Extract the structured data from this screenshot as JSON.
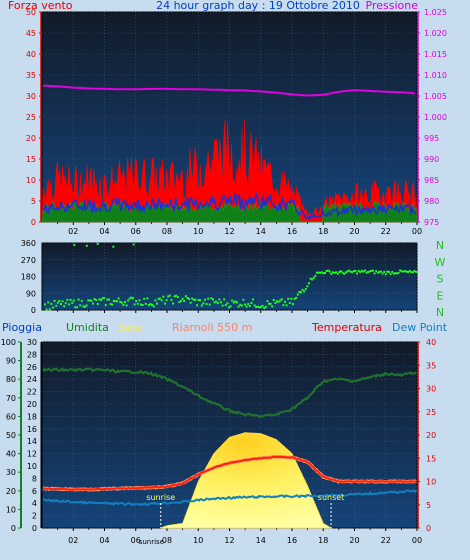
{
  "header": {
    "left": "Forza vento",
    "center": "24 hour graph day : 19 Ottobre 2010",
    "right": "Pressione"
  },
  "bottom_header": {
    "pioggia": "Pioggia",
    "umidita": "Umidita",
    "sole": "Sole",
    "station": "Riarnoli 550 m",
    "temperatura": "Temperatura",
    "dewpoint": "Dew Point"
  },
  "colors": {
    "plot_bg_top": "#101828",
    "plot_bg_bottom": "#14406e",
    "wind_gust": "#ff0000",
    "wind_avg": "#2030d0",
    "wind_green": "#108018",
    "pressure": "#e000e0",
    "direction": "#20ff20",
    "humidity": "#207030",
    "sun": "#ffee40",
    "temperature": "#ff2010",
    "dewpoint": "#1080c0",
    "label_red": "#e00000",
    "label_blue": "#0040c0",
    "label_green": "#108020"
  },
  "chart_data": [
    {
      "type": "line",
      "title": "24 hour graph day : 19 Ottobre 2010",
      "x_ticks": [
        "02",
        "04",
        "06",
        "08",
        "10",
        "12",
        "14",
        "16",
        "18",
        "20",
        "22",
        "00"
      ],
      "xlim": [
        0,
        24
      ],
      "left_axis": {
        "label": "Forza vento",
        "ylim": [
          0,
          50
        ],
        "ticks": [
          "0",
          "5",
          "10",
          "15",
          "20",
          "25",
          "30",
          "35",
          "40",
          "45",
          "50"
        ]
      },
      "right_axis": {
        "label": "Pressione",
        "ylim": [
          975,
          1025
        ],
        "ticks": [
          "975",
          "980",
          "985",
          "990",
          "995",
          "1.000",
          "1.005",
          "1.010",
          "1.015",
          "1.020",
          "1.025"
        ]
      },
      "series": [
        {
          "name": "Pressione",
          "axis": "right",
          "x": [
            0,
            1,
            2,
            3,
            4,
            5,
            6,
            7,
            8,
            9,
            10,
            11,
            12,
            13,
            14,
            15,
            16,
            17,
            18,
            19,
            20,
            21,
            22,
            23,
            24
          ],
          "values": [
            1007.5,
            1007.3,
            1007,
            1006.8,
            1006.7,
            1006.6,
            1006.6,
            1006.7,
            1006.7,
            1006.6,
            1006.6,
            1006.5,
            1006.4,
            1006.3,
            1006.1,
            1005.8,
            1005.4,
            1005.1,
            1005.3,
            1006,
            1006.4,
            1006.2,
            1006,
            1005.9,
            1005.6
          ]
        },
        {
          "name": "Forza vento",
          "axis": "left",
          "x": [
            0,
            1,
            2,
            3,
            4,
            5,
            6,
            7,
            8,
            9,
            10,
            11,
            12,
            13,
            14,
            15,
            16,
            17,
            18,
            19,
            20,
            21,
            22,
            23,
            24
          ],
          "values": [
            9,
            11,
            10,
            11,
            10,
            11,
            12,
            12,
            11,
            12,
            14,
            17,
            19,
            18,
            14,
            11,
            8,
            2,
            4,
            6,
            7,
            7,
            8,
            8,
            7
          ]
        },
        {
          "name": "wind-average",
          "axis": "left",
          "x": [
            0,
            2,
            4,
            6,
            8,
            10,
            12,
            14,
            16,
            17,
            18,
            20,
            22,
            24
          ],
          "values": [
            3,
            4,
            4,
            4,
            4,
            4.5,
            5,
            5,
            4,
            1,
            2,
            3,
            3,
            3
          ]
        }
      ]
    },
    {
      "type": "scatter",
      "x_ticks": [
        "02",
        "04",
        "06",
        "08",
        "10",
        "12",
        "14",
        "16",
        "18",
        "20",
        "22",
        "00"
      ],
      "xlim": [
        0,
        24
      ],
      "left_axis": {
        "ylim": [
          0,
          360
        ],
        "ticks": [
          "0",
          "90",
          "180",
          "270",
          "360"
        ]
      },
      "right_labels": [
        "N",
        "W",
        "S",
        "E",
        "N"
      ],
      "series": [
        {
          "name": "direzione",
          "x": [
            0,
            1,
            2,
            3,
            4,
            5,
            6,
            7,
            8,
            9,
            10,
            11,
            12,
            13,
            14,
            15,
            16,
            17,
            17.5,
            18,
            19,
            20,
            21,
            22,
            23,
            24
          ],
          "values": [
            20,
            30,
            35,
            40,
            45,
            45,
            50,
            40,
            55,
            60,
            40,
            45,
            35,
            40,
            30,
            35,
            40,
            150,
            195,
            205,
            200,
            205,
            205,
            200,
            205,
            200
          ]
        },
        {
          "name": "high-points",
          "x": [
            2,
            2.8,
            3.5,
            4.5,
            5.8
          ],
          "values": [
            350,
            345,
            355,
            340,
            352
          ]
        }
      ]
    },
    {
      "type": "line",
      "x_ticks": [
        "02",
        "04",
        "06",
        "08",
        "10",
        "12",
        "14",
        "16",
        "18",
        "20",
        "22",
        "00"
      ],
      "x_special_tick": "sunrise",
      "xlim": [
        0,
        24
      ],
      "axes": {
        "pioggia": {
          "ylim": [
            0,
            100
          ],
          "ticks": [
            "0",
            "10",
            "20",
            "30",
            "40",
            "50",
            "60",
            "70",
            "80",
            "90",
            "100"
          ]
        },
        "umidita": {
          "ylim": [
            0,
            30
          ],
          "ticks": [
            "0",
            "2",
            "4",
            "6",
            "8",
            "10",
            "12",
            "14",
            "16",
            "18",
            "20",
            "22",
            "24",
            "26",
            "28",
            "30"
          ]
        },
        "temperatura": {
          "ylim": [
            0,
            40
          ],
          "ticks": [
            "0",
            "5",
            "10",
            "15",
            "20",
            "25",
            "30",
            "35",
            "40"
          ]
        }
      },
      "annotations": [
        {
          "text": "sunrise",
          "x": 7.6
        },
        {
          "text": "sunset",
          "x": 18.5
        }
      ],
      "series": [
        {
          "name": "Umidita",
          "axis": "pioggia",
          "x": [
            0,
            1,
            2,
            3,
            4,
            5,
            6,
            7,
            8,
            9,
            10,
            11,
            12,
            13,
            14,
            15,
            16,
            17,
            18,
            19,
            20,
            21,
            22,
            23,
            24
          ],
          "values": [
            85,
            85,
            85,
            85,
            85,
            84,
            84,
            83,
            80,
            76,
            71,
            67,
            63,
            61,
            60,
            61,
            64,
            70,
            79,
            80,
            79,
            81,
            83,
            82,
            84
          ]
        },
        {
          "name": "Temperatura",
          "axis": "temperatura",
          "x": [
            0,
            1,
            2,
            3,
            4,
            5,
            6,
            7,
            8,
            9,
            10,
            11,
            12,
            13,
            14,
            15,
            16,
            17,
            18,
            19,
            20,
            21,
            22,
            23,
            24
          ],
          "values": [
            8.5,
            8.4,
            8.3,
            8.3,
            8.4,
            8.5,
            8.6,
            8.7,
            8.9,
            9.6,
            11.5,
            13,
            14,
            14.6,
            15,
            15.3,
            15.2,
            14.2,
            11,
            10,
            10,
            10,
            10,
            10,
            10
          ]
        },
        {
          "name": "Dew Point",
          "axis": "temperatura",
          "x": [
            0,
            1,
            2,
            3,
            4,
            5,
            6,
            7,
            8,
            9,
            10,
            11,
            12,
            13,
            14,
            15,
            16,
            17,
            18,
            19,
            20,
            21,
            22,
            23,
            24
          ],
          "values": [
            6,
            5.8,
            5.6,
            5.4,
            5.3,
            5.2,
            5.1,
            5.2,
            5.4,
            5.6,
            6,
            6.3,
            6.5,
            6.6,
            6.7,
            6.8,
            6.8,
            6.9,
            7,
            7.1,
            7.2,
            7.4,
            7.6,
            7.8,
            8
          ]
        },
        {
          "name": "Sole",
          "axis": "temperatura",
          "x": [
            7.6,
            8,
            9,
            10,
            11,
            12,
            13,
            14,
            15,
            16,
            17,
            18,
            18.5
          ],
          "values": [
            0,
            0.5,
            1,
            10,
            16,
            19.5,
            20.5,
            20.3,
            19,
            16,
            9,
            1,
            0
          ]
        }
      ]
    }
  ]
}
